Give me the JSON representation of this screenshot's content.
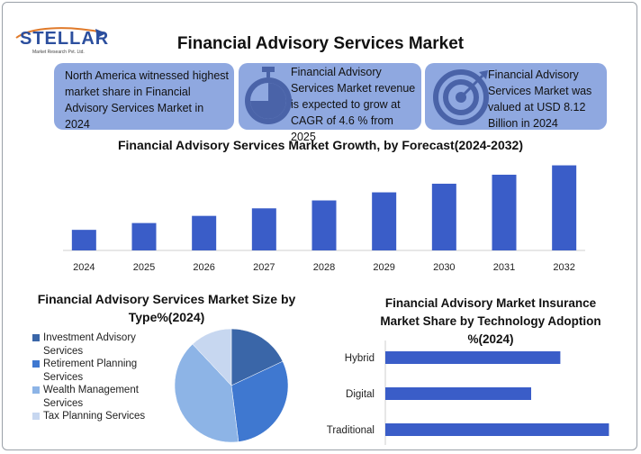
{
  "logo": {
    "name": "STELLAR",
    "tagline": "Market Research Pvt. Ltd."
  },
  "title": "Financial Advisory Services Market",
  "cards": [
    {
      "text_lines": [
        "North America witnessed highest",
        "market share in Financial",
        "Advisory Services Market in 2024"
      ],
      "icon": "none"
    },
    {
      "text_lines": [
        "Financial Advisory",
        "Services Market revenue",
        "is expected to grow at",
        "CAGR of 4.6 % from 2025"
      ],
      "icon": "stopwatch-icon"
    },
    {
      "text_lines": [
        "Financial Advisory",
        "Services Market was",
        "valued at USD 8.12",
        "Billion in 2024"
      ],
      "icon": "target-icon"
    }
  ],
  "colors": {
    "card_bg": "#8fa8e0",
    "bar": "#3a5dc8",
    "pie": [
      "#3a66a8",
      "#3f78d0",
      "#8db4e6",
      "#c7d7f0"
    ]
  },
  "chart_data": [
    {
      "type": "bar",
      "title": "Financial Advisory Services Market Growth, by Forecast(2024-2032)",
      "categories": [
        "2024",
        "2025",
        "2026",
        "2027",
        "2028",
        "2029",
        "2030",
        "2031",
        "2032"
      ],
      "values": [
        8.12,
        8.49,
        8.88,
        9.29,
        9.72,
        10.16,
        10.63,
        11.12,
        11.63
      ],
      "ylim": [
        7.0,
        12.0
      ],
      "xlabel": "",
      "ylabel": "",
      "grid": false,
      "legend": "none"
    },
    {
      "type": "pie",
      "title": "Financial Advisory Services Market Size by Type%(2024)",
      "labels": [
        "Investment Advisory Services",
        "Retirement Planning Services",
        "Wealth Management Services",
        "Tax Planning Services"
      ],
      "label_lines": [
        [
          "Investment Advisory",
          "Services"
        ],
        [
          "Retirement Planning",
          "Services"
        ],
        [
          "Wealth Management",
          "Services"
        ],
        [
          "Tax Planning Services"
        ]
      ],
      "values": [
        18,
        30,
        40,
        12
      ],
      "legend": "left"
    },
    {
      "type": "bar",
      "orientation": "horizontal",
      "title": "Financial Advisory Market Insurance Market Share by Technology Adoption %(2024)",
      "title_lines": [
        "Financial Advisory Market Insurance",
        "Market Share by Technology Adoption",
        "%(2024)"
      ],
      "categories": [
        "Hybrid",
        "Digital",
        "Traditional"
      ],
      "values": [
        36,
        30,
        46
      ],
      "xlim": [
        0,
        50
      ],
      "grid": false,
      "legend": "none"
    }
  ]
}
